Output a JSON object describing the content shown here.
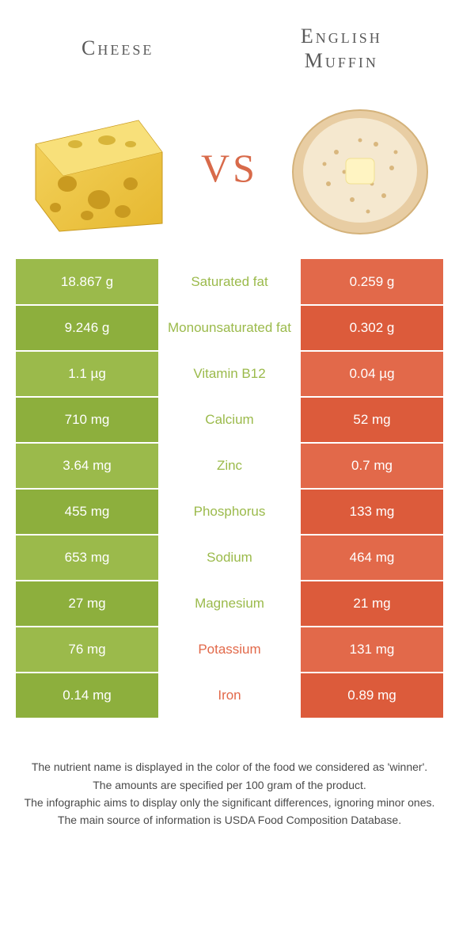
{
  "colors": {
    "left": "#9bba4b",
    "right": "#e2694a",
    "left_alt": "#8daf3d",
    "right_alt": "#dc5b3b",
    "mid_text_left": "#9bba4b",
    "mid_text_right": "#e2694a",
    "vs": "#d86a4a",
    "title": "#5a5a5a",
    "note": "#4a4a4a"
  },
  "foods": {
    "left": {
      "name": "Cheese"
    },
    "right": {
      "name": "English Muffin"
    }
  },
  "vs_label": "VS",
  "rows": [
    {
      "nutrient": "Saturated fat",
      "left": "18.867 g",
      "right": "0.259 g",
      "winner": "left"
    },
    {
      "nutrient": "Monounsaturated fat",
      "left": "9.246 g",
      "right": "0.302 g",
      "winner": "left"
    },
    {
      "nutrient": "Vitamin B12",
      "left": "1.1 µg",
      "right": "0.04 µg",
      "winner": "left"
    },
    {
      "nutrient": "Calcium",
      "left": "710 mg",
      "right": "52 mg",
      "winner": "left"
    },
    {
      "nutrient": "Zinc",
      "left": "3.64 mg",
      "right": "0.7 mg",
      "winner": "left"
    },
    {
      "nutrient": "Phosphorus",
      "left": "455 mg",
      "right": "133 mg",
      "winner": "left"
    },
    {
      "nutrient": "Sodium",
      "left": "653 mg",
      "right": "464 mg",
      "winner": "left"
    },
    {
      "nutrient": "Magnesium",
      "left": "27 mg",
      "right": "21 mg",
      "winner": "left"
    },
    {
      "nutrient": "Potassium",
      "left": "76 mg",
      "right": "131 mg",
      "winner": "right"
    },
    {
      "nutrient": "Iron",
      "left": "0.14 mg",
      "right": "0.89 mg",
      "winner": "right"
    }
  ],
  "notes": [
    "The nutrient name is displayed in the color of the food we considered as 'winner'.",
    "The amounts are specified per 100 gram of the product.",
    "The infographic aims to display only the significant differences, ignoring minor ones.",
    "The main source of information is USDA Food Composition Database."
  ]
}
